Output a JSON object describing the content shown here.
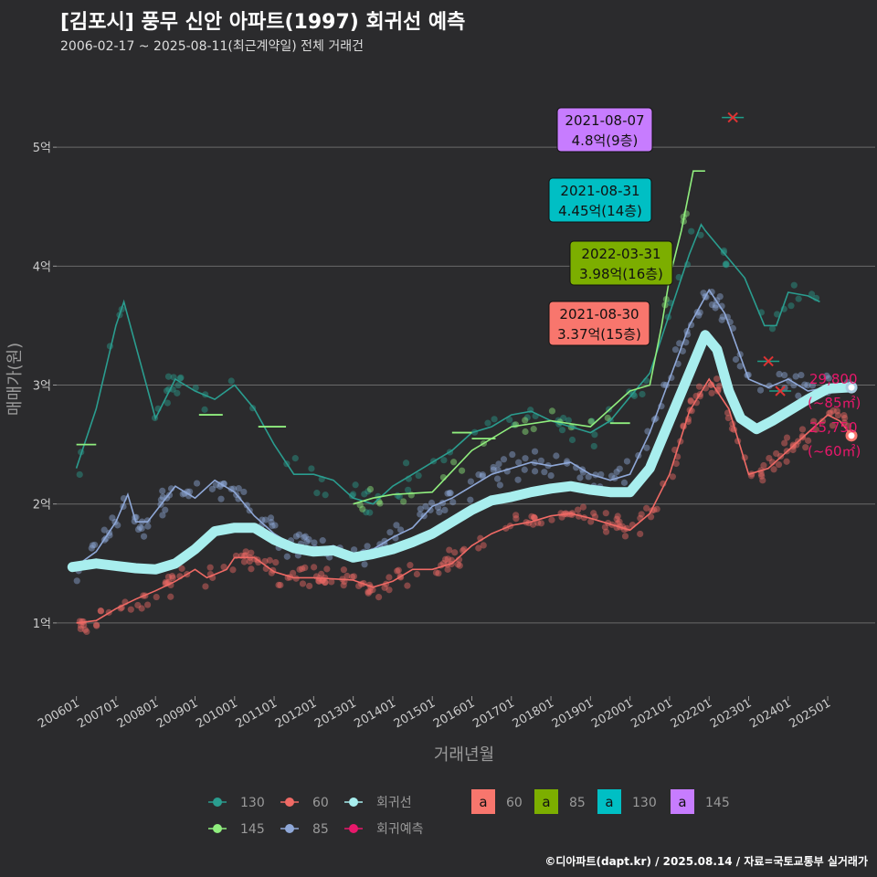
{
  "title": "[김포시] 풍무 신안 아파트(1997) 회귀선 예측",
  "subtitle": "2006-02-17 ~ 2025-08-11(최근계약일) 전체 거래건",
  "footer": "©디아파트(dapt.kr) / 2025.08.14 / 자료=국토교통부 실거래가",
  "colors": {
    "s130": "#2a9d8f",
    "s145": "#90ee7e",
    "s60": "#f06a65",
    "s85": "#8fa8d8",
    "regression": "#a8eeee",
    "forecast": "#e8186b",
    "label60": "#f8766d",
    "label85": "#7cae00",
    "label130": "#00bfc4",
    "label145": "#c77cff"
  },
  "chart_data": {
    "type": "scatter",
    "xlabel": "거래년월",
    "ylabel": "매매가(원)",
    "xlim": [
      2005.5,
      2026.2
    ],
    "ylim": [
      0.4,
      5.7
    ],
    "y_ticks": [
      {
        "v": 1,
        "label": "1억"
      },
      {
        "v": 2,
        "label": "2억"
      },
      {
        "v": 3,
        "label": "3억"
      },
      {
        "v": 4,
        "label": "4억"
      },
      {
        "v": 5,
        "label": "5억"
      }
    ],
    "x_ticks": [
      {
        "v": 2006,
        "label": "200601"
      },
      {
        "v": 2007,
        "label": "200701"
      },
      {
        "v": 2008,
        "label": "200801"
      },
      {
        "v": 2009,
        "label": "200901"
      },
      {
        "v": 2010,
        "label": "201001"
      },
      {
        "v": 2011,
        "label": "201101"
      },
      {
        "v": 2012,
        "label": "201201"
      },
      {
        "v": 2013,
        "label": "201301"
      },
      {
        "v": 2014,
        "label": "201401"
      },
      {
        "v": 2015,
        "label": "201501"
      },
      {
        "v": 2016,
        "label": "201601"
      },
      {
        "v": 2017,
        "label": "201701"
      },
      {
        "v": 2018,
        "label": "201801"
      },
      {
        "v": 2019,
        "label": "201901"
      },
      {
        "v": 2020,
        "label": "202001"
      },
      {
        "v": 2021,
        "label": "202101"
      },
      {
        "v": 2022,
        "label": "202201"
      },
      {
        "v": 2023,
        "label": "202301"
      },
      {
        "v": 2024,
        "label": "202401"
      },
      {
        "v": 2025,
        "label": "202501"
      }
    ],
    "series": [
      {
        "name": "60",
        "color": "#f06a65",
        "trend": [
          [
            2006.0,
            1.0
          ],
          [
            2006.5,
            1.02
          ],
          [
            2007.0,
            1.12
          ],
          [
            2007.5,
            1.2
          ],
          [
            2008.0,
            1.27
          ],
          [
            2008.5,
            1.35
          ],
          [
            2009.0,
            1.45
          ],
          [
            2009.3,
            1.38
          ],
          [
            2009.8,
            1.45
          ],
          [
            2010.0,
            1.55
          ],
          [
            2010.5,
            1.55
          ],
          [
            2011.0,
            1.43
          ],
          [
            2011.5,
            1.38
          ],
          [
            2012.0,
            1.38
          ],
          [
            2012.5,
            1.37
          ],
          [
            2013.0,
            1.36
          ],
          [
            2013.5,
            1.3
          ],
          [
            2014.0,
            1.35
          ],
          [
            2014.5,
            1.45
          ],
          [
            2015.0,
            1.45
          ],
          [
            2015.5,
            1.5
          ],
          [
            2016.0,
            1.65
          ],
          [
            2016.5,
            1.75
          ],
          [
            2017.0,
            1.82
          ],
          [
            2017.5,
            1.85
          ],
          [
            2018.0,
            1.9
          ],
          [
            2018.5,
            1.92
          ],
          [
            2019.0,
            1.88
          ],
          [
            2019.5,
            1.83
          ],
          [
            2020.0,
            1.78
          ],
          [
            2020.5,
            1.92
          ],
          [
            2021.0,
            2.25
          ],
          [
            2021.5,
            2.78
          ],
          [
            2022.0,
            3.05
          ],
          [
            2022.5,
            2.8
          ],
          [
            2023.0,
            2.25
          ],
          [
            2023.5,
            2.3
          ],
          [
            2024.0,
            2.45
          ],
          [
            2024.5,
            2.6
          ],
          [
            2025.0,
            2.75
          ],
          [
            2025.3,
            2.7
          ],
          [
            2025.6,
            2.58
          ]
        ]
      },
      {
        "name": "85",
        "color": "#8fa8d8",
        "trend": [
          [
            2006.0,
            1.48
          ],
          [
            2006.5,
            1.6
          ],
          [
            2007.0,
            1.85
          ],
          [
            2007.3,
            2.08
          ],
          [
            2007.5,
            1.85
          ],
          [
            2007.8,
            1.85
          ],
          [
            2008.5,
            2.15
          ],
          [
            2009.0,
            2.05
          ],
          [
            2009.5,
            2.2
          ],
          [
            2010.0,
            2.1
          ],
          [
            2010.5,
            1.9
          ],
          [
            2011.0,
            1.75
          ],
          [
            2011.5,
            1.65
          ],
          [
            2012.0,
            1.62
          ],
          [
            2012.5,
            1.65
          ],
          [
            2013.0,
            1.58
          ],
          [
            2013.5,
            1.62
          ],
          [
            2014.0,
            1.72
          ],
          [
            2014.5,
            1.8
          ],
          [
            2015.0,
            1.98
          ],
          [
            2015.5,
            2.05
          ],
          [
            2016.0,
            2.15
          ],
          [
            2016.5,
            2.25
          ],
          [
            2017.0,
            2.3
          ],
          [
            2017.5,
            2.35
          ],
          [
            2018.0,
            2.32
          ],
          [
            2018.5,
            2.35
          ],
          [
            2019.0,
            2.25
          ],
          [
            2019.5,
            2.2
          ],
          [
            2020.0,
            2.25
          ],
          [
            2020.5,
            2.6
          ],
          [
            2021.0,
            3.05
          ],
          [
            2021.5,
            3.5
          ],
          [
            2022.0,
            3.8
          ],
          [
            2022.4,
            3.6
          ],
          [
            2023.0,
            3.05
          ],
          [
            2023.5,
            2.98
          ],
          [
            2024.0,
            3.05
          ],
          [
            2024.5,
            2.95
          ],
          [
            2025.0,
            2.98
          ],
          [
            2025.6,
            2.98
          ]
        ]
      },
      {
        "name": "130",
        "color": "#2a9d8f",
        "trend": [
          [
            2006.0,
            2.3
          ],
          [
            2006.5,
            2.8
          ],
          [
            2007.0,
            3.5
          ],
          [
            2007.2,
            3.7
          ],
          [
            2008.0,
            2.72
          ],
          [
            2008.5,
            3.05
          ],
          [
            2009.0,
            2.95
          ],
          [
            2009.5,
            2.88
          ],
          [
            2010.0,
            3.0
          ],
          [
            2010.5,
            2.8
          ],
          [
            2011.0,
            2.5
          ],
          [
            2011.5,
            2.25
          ],
          [
            2012.0,
            2.25
          ],
          [
            2012.5,
            2.2
          ],
          [
            2013.0,
            2.05
          ],
          [
            2013.5,
            2.0
          ],
          [
            2014.0,
            2.15
          ],
          [
            2014.5,
            2.25
          ],
          [
            2015.0,
            2.35
          ],
          [
            2015.5,
            2.45
          ],
          [
            2016.0,
            2.6
          ],
          [
            2016.5,
            2.65
          ],
          [
            2017.0,
            2.75
          ],
          [
            2017.5,
            2.78
          ],
          [
            2018.0,
            2.7
          ],
          [
            2018.5,
            2.65
          ],
          [
            2019.0,
            2.6
          ],
          [
            2019.5,
            2.7
          ],
          [
            2020.0,
            2.9
          ],
          [
            2020.5,
            3.1
          ],
          [
            2021.0,
            3.6
          ],
          [
            2021.5,
            4.1
          ],
          [
            2021.8,
            4.35
          ],
          [
            2021.9,
            4.3
          ],
          [
            2022.9,
            3.9
          ],
          [
            2023.4,
            3.5
          ],
          [
            2023.7,
            3.5
          ],
          [
            2024.0,
            3.78
          ],
          [
            2024.5,
            3.75
          ],
          [
            2024.8,
            3.7
          ]
        ]
      },
      {
        "name": "145",
        "color": "#90ee7e",
        "trend": [
          [
            2013.0,
            2.0
          ],
          [
            2013.5,
            2.05
          ],
          [
            2014.0,
            2.08
          ],
          [
            2015.0,
            2.1
          ],
          [
            2016.0,
            2.45
          ],
          [
            2017.0,
            2.65
          ],
          [
            2018.0,
            2.7
          ],
          [
            2019.0,
            2.65
          ],
          [
            2020.0,
            2.95
          ],
          [
            2020.5,
            3.0
          ],
          [
            2020.8,
            3.5
          ],
          [
            2021.0,
            3.9
          ],
          [
            2021.3,
            4.3
          ],
          [
            2021.6,
            4.8
          ],
          [
            2021.9,
            4.8
          ]
        ]
      }
    ],
    "segments_145": [
      [
        2006.0,
        2006.5,
        2.5
      ],
      [
        2009.1,
        2009.7,
        2.75
      ],
      [
        2010.6,
        2011.3,
        2.65
      ],
      [
        2015.5,
        2016.0,
        2.6
      ],
      [
        2016.0,
        2016.6,
        2.55
      ],
      [
        2019.5,
        2020.0,
        2.68
      ]
    ],
    "regression": [
      [
        2005.9,
        1.47
      ],
      [
        2006.5,
        1.5
      ],
      [
        2007.0,
        1.48
      ],
      [
        2007.5,
        1.46
      ],
      [
        2008.0,
        1.45
      ],
      [
        2008.5,
        1.5
      ],
      [
        2009.0,
        1.62
      ],
      [
        2009.5,
        1.77
      ],
      [
        2010.0,
        1.8
      ],
      [
        2010.5,
        1.8
      ],
      [
        2011.0,
        1.7
      ],
      [
        2011.5,
        1.63
      ],
      [
        2012.0,
        1.6
      ],
      [
        2012.5,
        1.61
      ],
      [
        2013.0,
        1.55
      ],
      [
        2013.5,
        1.58
      ],
      [
        2014.0,
        1.62
      ],
      [
        2014.5,
        1.68
      ],
      [
        2015.0,
        1.75
      ],
      [
        2015.5,
        1.85
      ],
      [
        2016.0,
        1.95
      ],
      [
        2016.5,
        2.03
      ],
      [
        2017.0,
        2.06
      ],
      [
        2017.5,
        2.1
      ],
      [
        2018.0,
        2.13
      ],
      [
        2018.5,
        2.15
      ],
      [
        2019.0,
        2.12
      ],
      [
        2019.5,
        2.1
      ],
      [
        2020.0,
        2.1
      ],
      [
        2020.5,
        2.3
      ],
      [
        2021.0,
        2.7
      ],
      [
        2021.5,
        3.1
      ],
      [
        2021.9,
        3.42
      ],
      [
        2022.2,
        3.3
      ],
      [
        2022.5,
        2.95
      ],
      [
        2022.8,
        2.72
      ],
      [
        2023.2,
        2.63
      ],
      [
        2023.6,
        2.7
      ],
      [
        2024.0,
        2.78
      ],
      [
        2024.5,
        2.88
      ],
      [
        2025.0,
        2.97
      ],
      [
        2025.5,
        2.98
      ]
    ],
    "forecast_points": [
      {
        "name": "85",
        "x": 2025.6,
        "y": 2.98,
        "value": "29,800",
        "area": "(~85㎡)",
        "color": "#a8cce0"
      },
      {
        "name": "60",
        "x": 2025.6,
        "y": 2.575,
        "value": "25,750",
        "area": "(~60㎡)",
        "color": "#f8766d"
      }
    ],
    "cancelled_marks": [
      [
        2022.6,
        5.25
      ],
      [
        2023.5,
        3.2
      ],
      [
        2023.8,
        2.95
      ]
    ],
    "annotations": [
      {
        "date": "2021-08-07",
        "value": "4.8억(9층)",
        "series": "145",
        "color": "#c77cff",
        "x": 2021.6,
        "y": 4.8
      },
      {
        "date": "2021-08-31",
        "value": "4.45억(14층)",
        "series": "130",
        "color": "#00bfc4",
        "x": 2021.66,
        "y": 4.45
      },
      {
        "date": "2022-03-31",
        "value": "3.98억(16층)",
        "series": "85",
        "color": "#7cae00",
        "x": 2022.25,
        "y": 3.98
      },
      {
        "date": "2021-08-30",
        "value": "3.37억(15층)",
        "series": "60",
        "color": "#f8766d",
        "x": 2021.65,
        "y": 3.37
      }
    ]
  },
  "legend": {
    "point_items": [
      {
        "label": "130",
        "color": "#2a9d8f"
      },
      {
        "label": "60",
        "color": "#f06a65"
      },
      {
        "label": "회귀선",
        "color": "#a8eeee"
      },
      {
        "label": "145",
        "color": "#90ee7e"
      },
      {
        "label": "85",
        "color": "#8fa8d8"
      },
      {
        "label": "회귀예측",
        "color": "#e8186b"
      }
    ],
    "box_glyph": "a",
    "box_items": [
      {
        "label": "60",
        "color": "#f8766d"
      },
      {
        "label": "85",
        "color": "#7cae00"
      },
      {
        "label": "130",
        "color": "#00bfc4"
      },
      {
        "label": "145",
        "color": "#c77cff"
      }
    ]
  }
}
